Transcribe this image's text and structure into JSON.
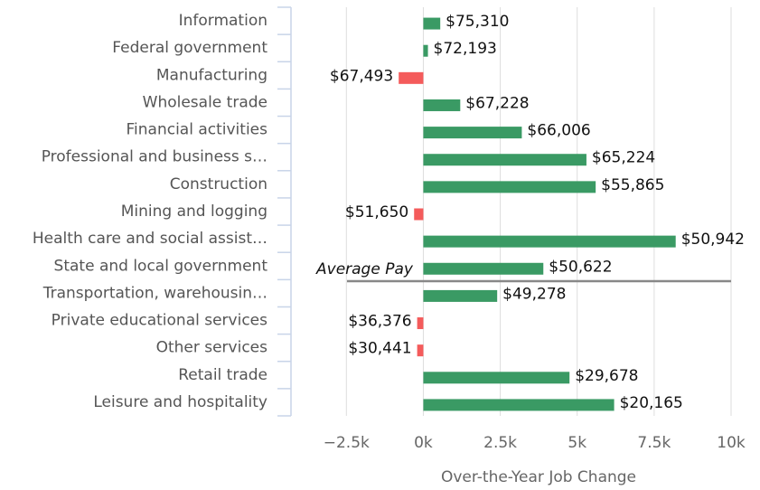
{
  "chart_data": {
    "type": "bar",
    "orientation": "horizontal",
    "x_label": "Over-the-Year Job Change",
    "annotation": "Average Pay",
    "categories": [
      "Information",
      "Federal government",
      "Manufacturing",
      "Wholesale trade",
      "Financial activities",
      "Professional and business s…",
      "Construction",
      "Mining and logging",
      "Health care and social assist…",
      "State and local government",
      "Transportation, warehousin…",
      "Private educational services",
      "Other services",
      "Retail trade",
      "Leisure and hospitality"
    ],
    "values": [
      550,
      150,
      -800,
      1200,
      3200,
      5300,
      5600,
      -300,
      8200,
      3900,
      2400,
      -200,
      -200,
      4750,
      6200
    ],
    "value_labels": [
      "$75,310",
      "$72,193",
      "$67,493",
      "$67,228",
      "$66,006",
      "$65,224",
      "$55,865",
      "$51,650",
      "$50,942",
      "$50,622",
      "$49,278",
      "$36,376",
      "$30,441",
      "$29,678",
      "$20,165"
    ],
    "positive_color": "#3a9a64",
    "negative_color": "#f45b5b",
    "xlim": [
      -4300,
      10000
    ],
    "xticks": [
      {
        "value": -2500,
        "label": "−2.5k"
      },
      {
        "value": 0,
        "label": "0k"
      },
      {
        "value": 2500,
        "label": "2.5k"
      },
      {
        "value": 5000,
        "label": "5k"
      },
      {
        "value": 7500,
        "label": "7.5k"
      },
      {
        "value": 10000,
        "label": "10k"
      }
    ],
    "grid": true
  }
}
